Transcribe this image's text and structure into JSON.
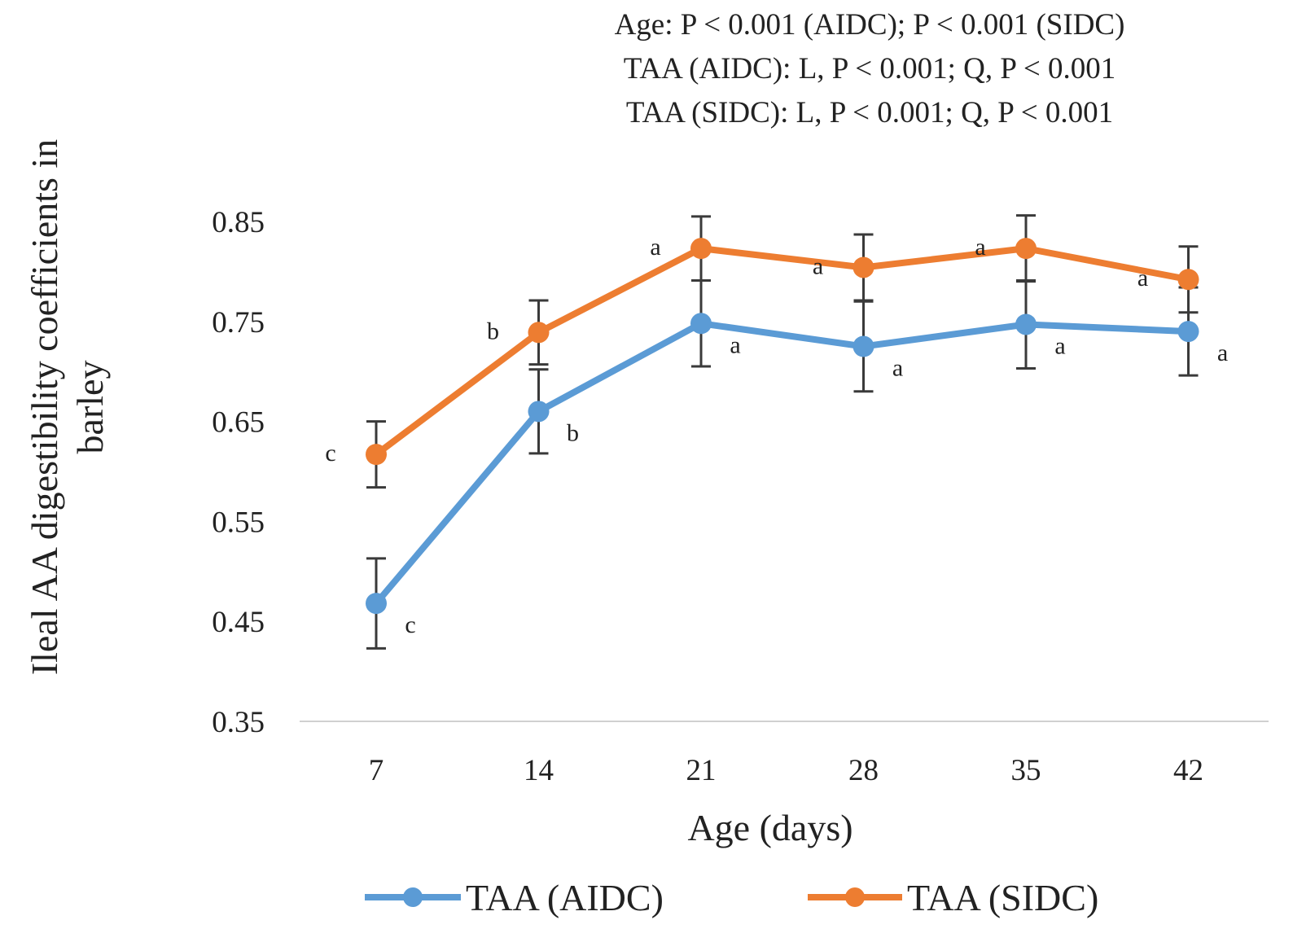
{
  "chart_data": {
    "type": "line",
    "title": "",
    "annotations_top": [
      "Age: P < 0.001 (AIDC); P < 0.001 (SIDC)",
      "TAA (AIDC): L, P < 0.001; Q, P < 0.001",
      "TAA (SIDC): L, P < 0.001; Q, P < 0.001"
    ],
    "xlabel": "Age (days)",
    "ylabel_lines": [
      "Ileal AA digestibility coefficients in",
      "barley"
    ],
    "categories": [
      "7",
      "14",
      "21",
      "28",
      "35",
      "42"
    ],
    "ylim": [
      0.35,
      0.85
    ],
    "yticks": [
      "0.85",
      "0.75",
      "0.65",
      "0.55",
      "0.45",
      "0.35"
    ],
    "ytick_values": [
      0.85,
      0.75,
      0.65,
      0.55,
      0.45,
      0.35
    ],
    "legend_position": "bottom",
    "series": [
      {
        "name": "TAA (AIDC)",
        "color": "#5B9BD5",
        "values": [
          0.468,
          0.66,
          0.748,
          0.725,
          0.747,
          0.74
        ],
        "errors": [
          0.045,
          0.042,
          0.043,
          0.045,
          0.044,
          0.044
        ],
        "letters": [
          "c",
          "b",
          "a",
          "a",
          "a",
          "a"
        ],
        "letter_side": "below-right"
      },
      {
        "name": "TAA (SIDC)",
        "color": "#ED7D31",
        "values": [
          0.617,
          0.739,
          0.823,
          0.804,
          0.823,
          0.792
        ],
        "errors": [
          0.033,
          0.032,
          0.032,
          0.033,
          0.033,
          0.033
        ],
        "letters": [
          "c",
          "b",
          "a",
          "a",
          "a",
          "a"
        ],
        "letter_side": "above-left"
      }
    ]
  }
}
